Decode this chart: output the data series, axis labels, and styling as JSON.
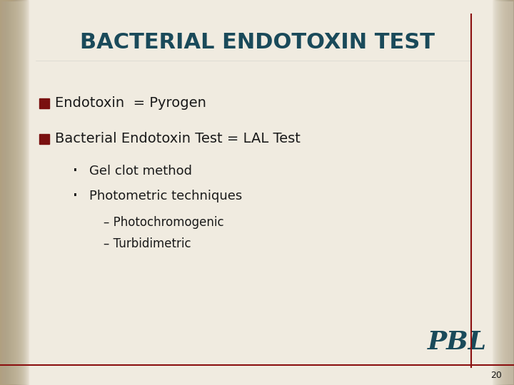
{
  "title": "BACTERIAL ENDOTOXIN TEST",
  "title_color": "#1a4a5a",
  "title_fontsize": 22,
  "background_color": "#f0ebe0",
  "text_color": "#1a1a1a",
  "bullet_color": "#7a1010",
  "line_color": "#8b1010",
  "page_number": "20",
  "bullet1": "Endotoxin  = Pyrogen",
  "bullet2": "Bacterial Endotoxin Test = LAL Test",
  "sub_bullet1": "Gel clot method",
  "sub_bullet2": "Photometric techniques",
  "sub_sub1": "Photochromogenic",
  "sub_sub2": "Turbidimetric",
  "pbl_color": "#1a4a5a",
  "pbl_text": "PBL",
  "content_fontsize": 14,
  "sub_fontsize": 13,
  "subsub_fontsize": 12
}
